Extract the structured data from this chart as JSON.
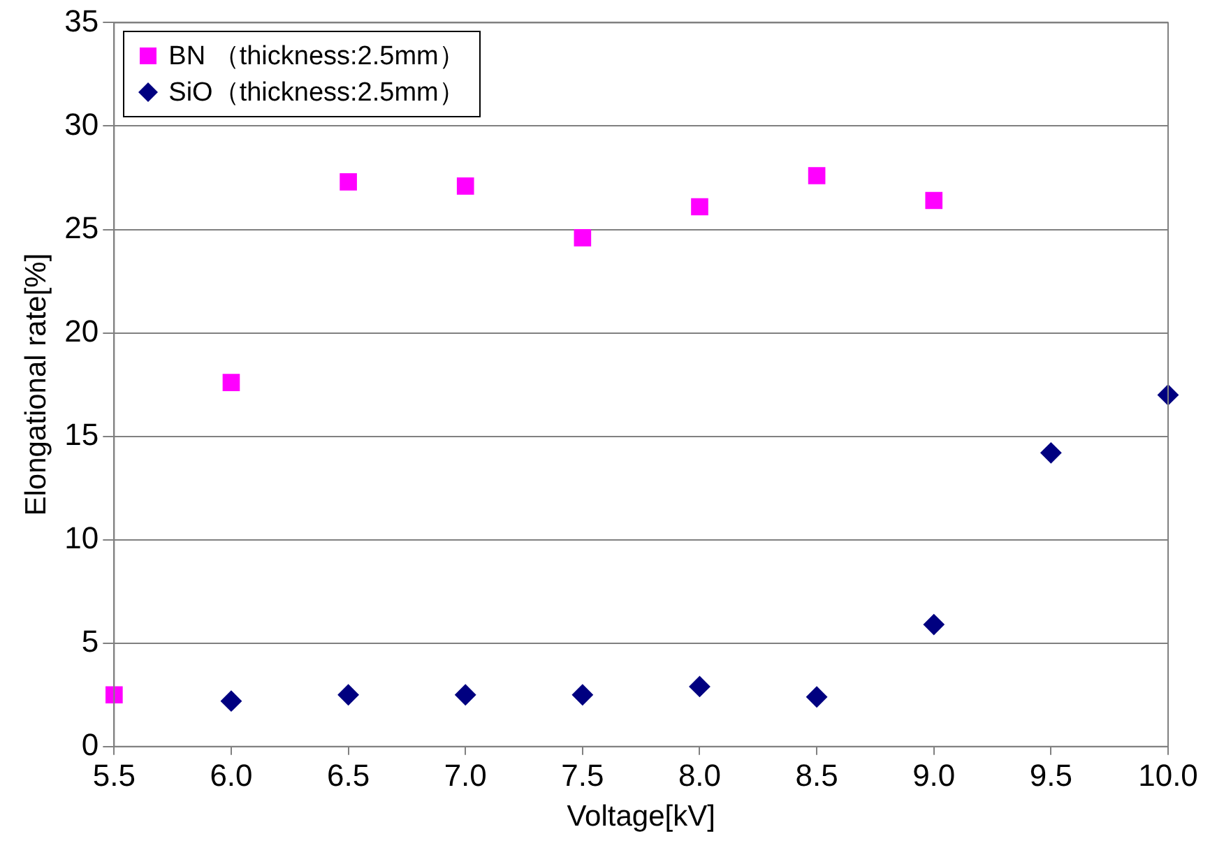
{
  "chart_data": {
    "type": "scatter",
    "xlabel": "Voltage[kV]",
    "ylabel": "Elongational rate[%]",
    "xlim": [
      5.5,
      10.0
    ],
    "xticks": [
      {
        "value": 5.5,
        "label": "5.5"
      },
      {
        "value": 6,
        "label": "6.0"
      },
      {
        "value": 6.5,
        "label": "6.5"
      },
      {
        "value": 7,
        "label": "7.0"
      },
      {
        "value": 7.5,
        "label": "7.5"
      },
      {
        "value": 8,
        "label": "8.0"
      },
      {
        "value": 8.5,
        "label": "8.5"
      },
      {
        "value": 9,
        "label": "9.0"
      },
      {
        "value": 9.5,
        "label": "9.5"
      },
      {
        "value": 10,
        "label": "10.0"
      }
    ],
    "ylim": [
      0,
      35
    ],
    "yticks": [
      0,
      5,
      10,
      15,
      20,
      25,
      30,
      35
    ],
    "grid": "y",
    "legend": "top left",
    "series": [
      {
        "name": "BN （thickness:2.5mm）",
        "color": "#ff00ff",
        "marker": "square",
        "x": [
          5.5,
          6.0,
          6.5,
          7.0,
          7.5,
          8.0,
          8.5,
          9.0
        ],
        "values": [
          2.5,
          17.6,
          27.3,
          27.1,
          24.6,
          26.1,
          27.6,
          26.4
        ]
      },
      {
        "name": "SiO（thickness:2.5mm）",
        "color": "#000080",
        "marker": "diamond",
        "x": [
          6.0,
          6.5,
          7.0,
          7.5,
          8.0,
          8.5,
          9.0,
          9.5,
          10.0
        ],
        "values": [
          2.2,
          2.5,
          2.5,
          2.5,
          2.9,
          2.4,
          5.9,
          14.2,
          17.0
        ]
      }
    ]
  }
}
